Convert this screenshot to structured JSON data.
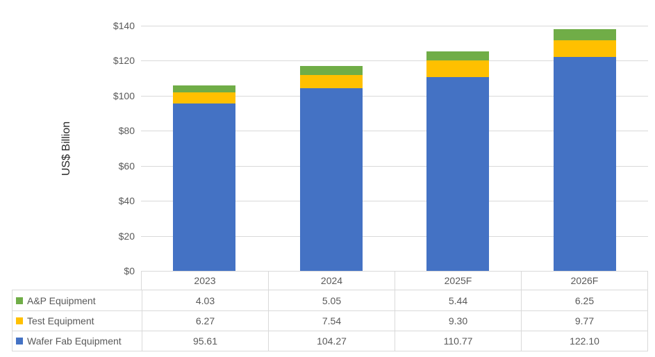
{
  "chart_data": {
    "type": "bar",
    "stacked": true,
    "title": "",
    "ylabel": "US$ Billion",
    "ylim": [
      0,
      140
    ],
    "ytick_step": 20,
    "ytick_prefix": "$",
    "grid": true,
    "legend_position": "data-table-left",
    "categories": [
      "2023",
      "2024",
      "2025F",
      "2026F"
    ],
    "series": [
      {
        "name": "A&P Equipment",
        "color": "#70AD47",
        "values": [
          4.03,
          5.05,
          5.44,
          6.25
        ]
      },
      {
        "name": "Test Equipment",
        "color": "#FFC000",
        "values": [
          6.27,
          7.54,
          9.3,
          9.77
        ]
      },
      {
        "name": "Wafer Fab Equipment",
        "color": "#4472C4",
        "values": [
          95.61,
          104.27,
          110.77,
          122.1
        ]
      }
    ],
    "value_decimals": 2
  },
  "colors": {
    "background": "#FFFFFF",
    "gridline": "#D9D9D9",
    "table_border": "#D9D9D9",
    "axis_text": "#595959",
    "table_text": "#595959",
    "axis_title_text": "#262626"
  }
}
